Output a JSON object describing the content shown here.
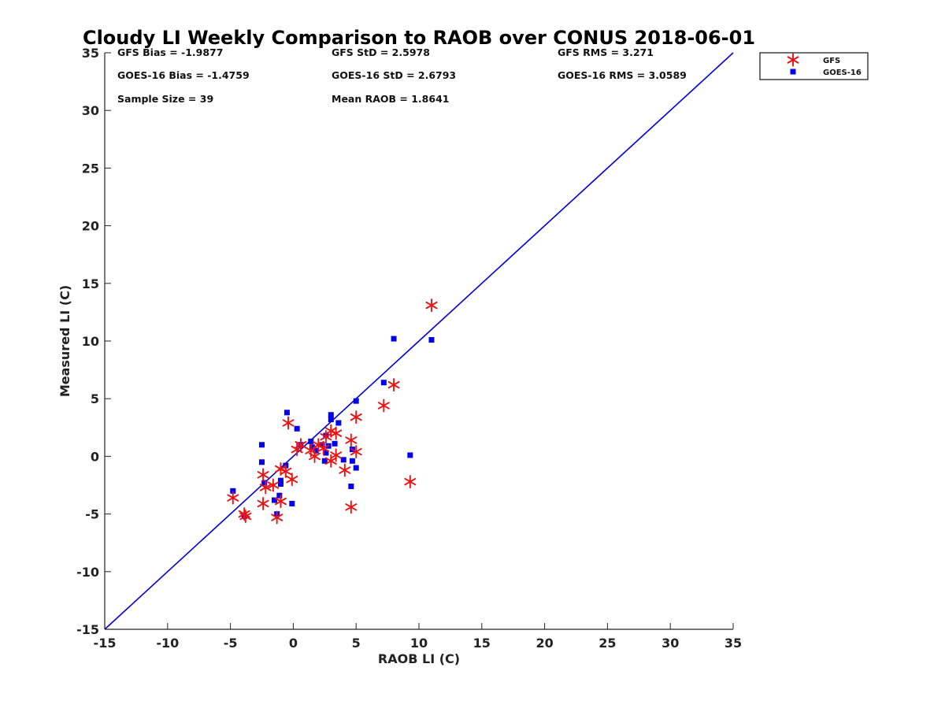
{
  "chart_data": {
    "type": "scatter",
    "title": "Cloudy LI Weekly Comparison to RAOB over CONUS 2018-06-01",
    "xlabel": "RAOB LI (C)",
    "ylabel": "Measured LI (C)",
    "xlim": [
      -15,
      35
    ],
    "ylim": [
      -15,
      35
    ],
    "xticks": [
      -15,
      -10,
      -5,
      0,
      5,
      10,
      15,
      20,
      25,
      30,
      35
    ],
    "yticks": [
      -15,
      -10,
      -5,
      0,
      5,
      10,
      15,
      20,
      25,
      30,
      35
    ],
    "grid": false,
    "legend_position": "top-right, outside plot",
    "reference_line": {
      "x": [
        -15,
        35
      ],
      "y": [
        -15,
        35
      ],
      "color": "#0000dd"
    },
    "stats": [
      [
        "GFS Bias = -1.9877",
        "GFS StD = 2.5978",
        "GFS RMS = 3.271"
      ],
      [
        "GOES-16 Bias = -1.4759",
        "GOES-16 StD = 2.6793",
        "GOES-16 RMS = 3.0589"
      ],
      [
        "Sample Size = 39",
        "Mean RAOB = 1.8641",
        ""
      ]
    ],
    "series": [
      {
        "name": "GFS",
        "marker": "asterisk",
        "color": "#ee1111",
        "points": [
          [
            11.0,
            13.1
          ],
          [
            8.0,
            6.2
          ],
          [
            7.2,
            4.4
          ],
          [
            5.0,
            3.4
          ],
          [
            9.3,
            -2.2
          ],
          [
            4.6,
            -4.4
          ],
          [
            5.0,
            0.4
          ],
          [
            4.6,
            1.4
          ],
          [
            4.1,
            -1.2
          ],
          [
            3.4,
            2.0
          ],
          [
            3.4,
            0.1
          ],
          [
            3.0,
            2.2
          ],
          [
            3.0,
            -0.4
          ],
          [
            2.6,
            1.7
          ],
          [
            2.4,
            0.7
          ],
          [
            2.0,
            1.0
          ],
          [
            1.7,
            0.0
          ],
          [
            1.4,
            0.5
          ],
          [
            0.6,
            1.0
          ],
          [
            0.3,
            0.6
          ],
          [
            -0.4,
            2.9
          ],
          [
            -0.1,
            -2.0
          ],
          [
            -0.6,
            -1.3
          ],
          [
            -1.0,
            -1.1
          ],
          [
            -1.0,
            -3.9
          ],
          [
            -1.6,
            -2.5
          ],
          [
            -2.2,
            -2.7
          ],
          [
            -2.4,
            -1.6
          ],
          [
            -2.4,
            -4.1
          ],
          [
            -1.3,
            -5.3
          ],
          [
            -3.8,
            -5.2
          ],
          [
            -3.9,
            -5.0
          ],
          [
            -4.8,
            -3.6
          ]
        ]
      },
      {
        "name": "GOES-16",
        "marker": "square",
        "color": "#0000ee",
        "points": [
          [
            8.0,
            10.2
          ],
          [
            11.0,
            10.1
          ],
          [
            7.2,
            6.4
          ],
          [
            5.0,
            4.8
          ],
          [
            9.3,
            0.1
          ],
          [
            5.0,
            -1.0
          ],
          [
            4.6,
            -2.6
          ],
          [
            4.7,
            0.6
          ],
          [
            4.7,
            -0.4
          ],
          [
            4.0,
            -0.3
          ],
          [
            3.6,
            2.9
          ],
          [
            3.3,
            1.1
          ],
          [
            3.0,
            3.6
          ],
          [
            3.0,
            3.2
          ],
          [
            2.8,
            0.9
          ],
          [
            2.6,
            1.8
          ],
          [
            2.6,
            0.3
          ],
          [
            2.5,
            -0.4
          ],
          [
            2.3,
            1.0
          ],
          [
            1.8,
            0.5
          ],
          [
            1.5,
            0.8
          ],
          [
            1.4,
            1.3
          ],
          [
            0.6,
            1.0
          ],
          [
            0.3,
            2.4
          ],
          [
            -0.5,
            3.8
          ],
          [
            -0.6,
            -0.8
          ],
          [
            -0.1,
            -4.1
          ],
          [
            -1.0,
            -2.1
          ],
          [
            -1.0,
            -2.4
          ],
          [
            -1.1,
            -3.4
          ],
          [
            -1.5,
            -3.8
          ],
          [
            -1.3,
            -5.0
          ],
          [
            -2.5,
            1.0
          ],
          [
            -2.5,
            -0.5
          ],
          [
            -2.3,
            -2.3
          ],
          [
            -3.9,
            -5.2
          ],
          [
            -4.8,
            -3.0
          ]
        ]
      }
    ]
  }
}
